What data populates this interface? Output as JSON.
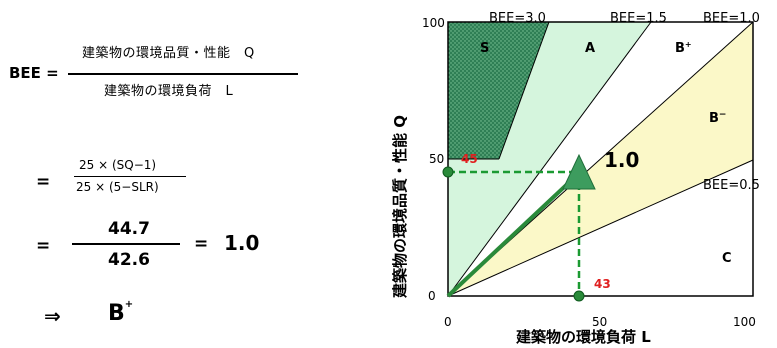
{
  "formula": {
    "bee_label": "BEE =",
    "numerator": "建築物の環境品質・性能　Q",
    "denominator": "建築物の環境負荷　L",
    "eq1": "=",
    "eq1_num": "25 × (SQ−1)",
    "eq1_den": "25 × (5−SLR)",
    "eq2": "=",
    "eq2_num": "44.7",
    "eq2_den": "42.6",
    "eq2_result_eq": "=",
    "eq2_result": "1.0",
    "implies": "⇒",
    "grade": "B",
    "grade_sup": "+"
  },
  "chart": {
    "y_title": "建築物の環境品質・性能 Q",
    "x_title": "建築物の環境負荷 L",
    "x_ticks": [
      "0",
      "50",
      "100"
    ],
    "y_ticks": [
      "0",
      "50",
      "100"
    ],
    "boundaries": [
      "BEE=3.0",
      "BEE=1.5",
      "BEE=1.0",
      "BEE=0.5"
    ],
    "zones": [
      "S",
      "A",
      "B+",
      "B−",
      "C"
    ],
    "point_value": "1.0",
    "q_value": "45",
    "l_value": "43",
    "colors": {
      "zone_s": "#2f7f55",
      "zone_a": "#d5f5dd",
      "zone_b": "#fbf8c8",
      "marker": "#3d9c5e",
      "dot": "#2a8a3a",
      "dash": "#1b9a32",
      "value_label": "#e02020"
    }
  }
}
